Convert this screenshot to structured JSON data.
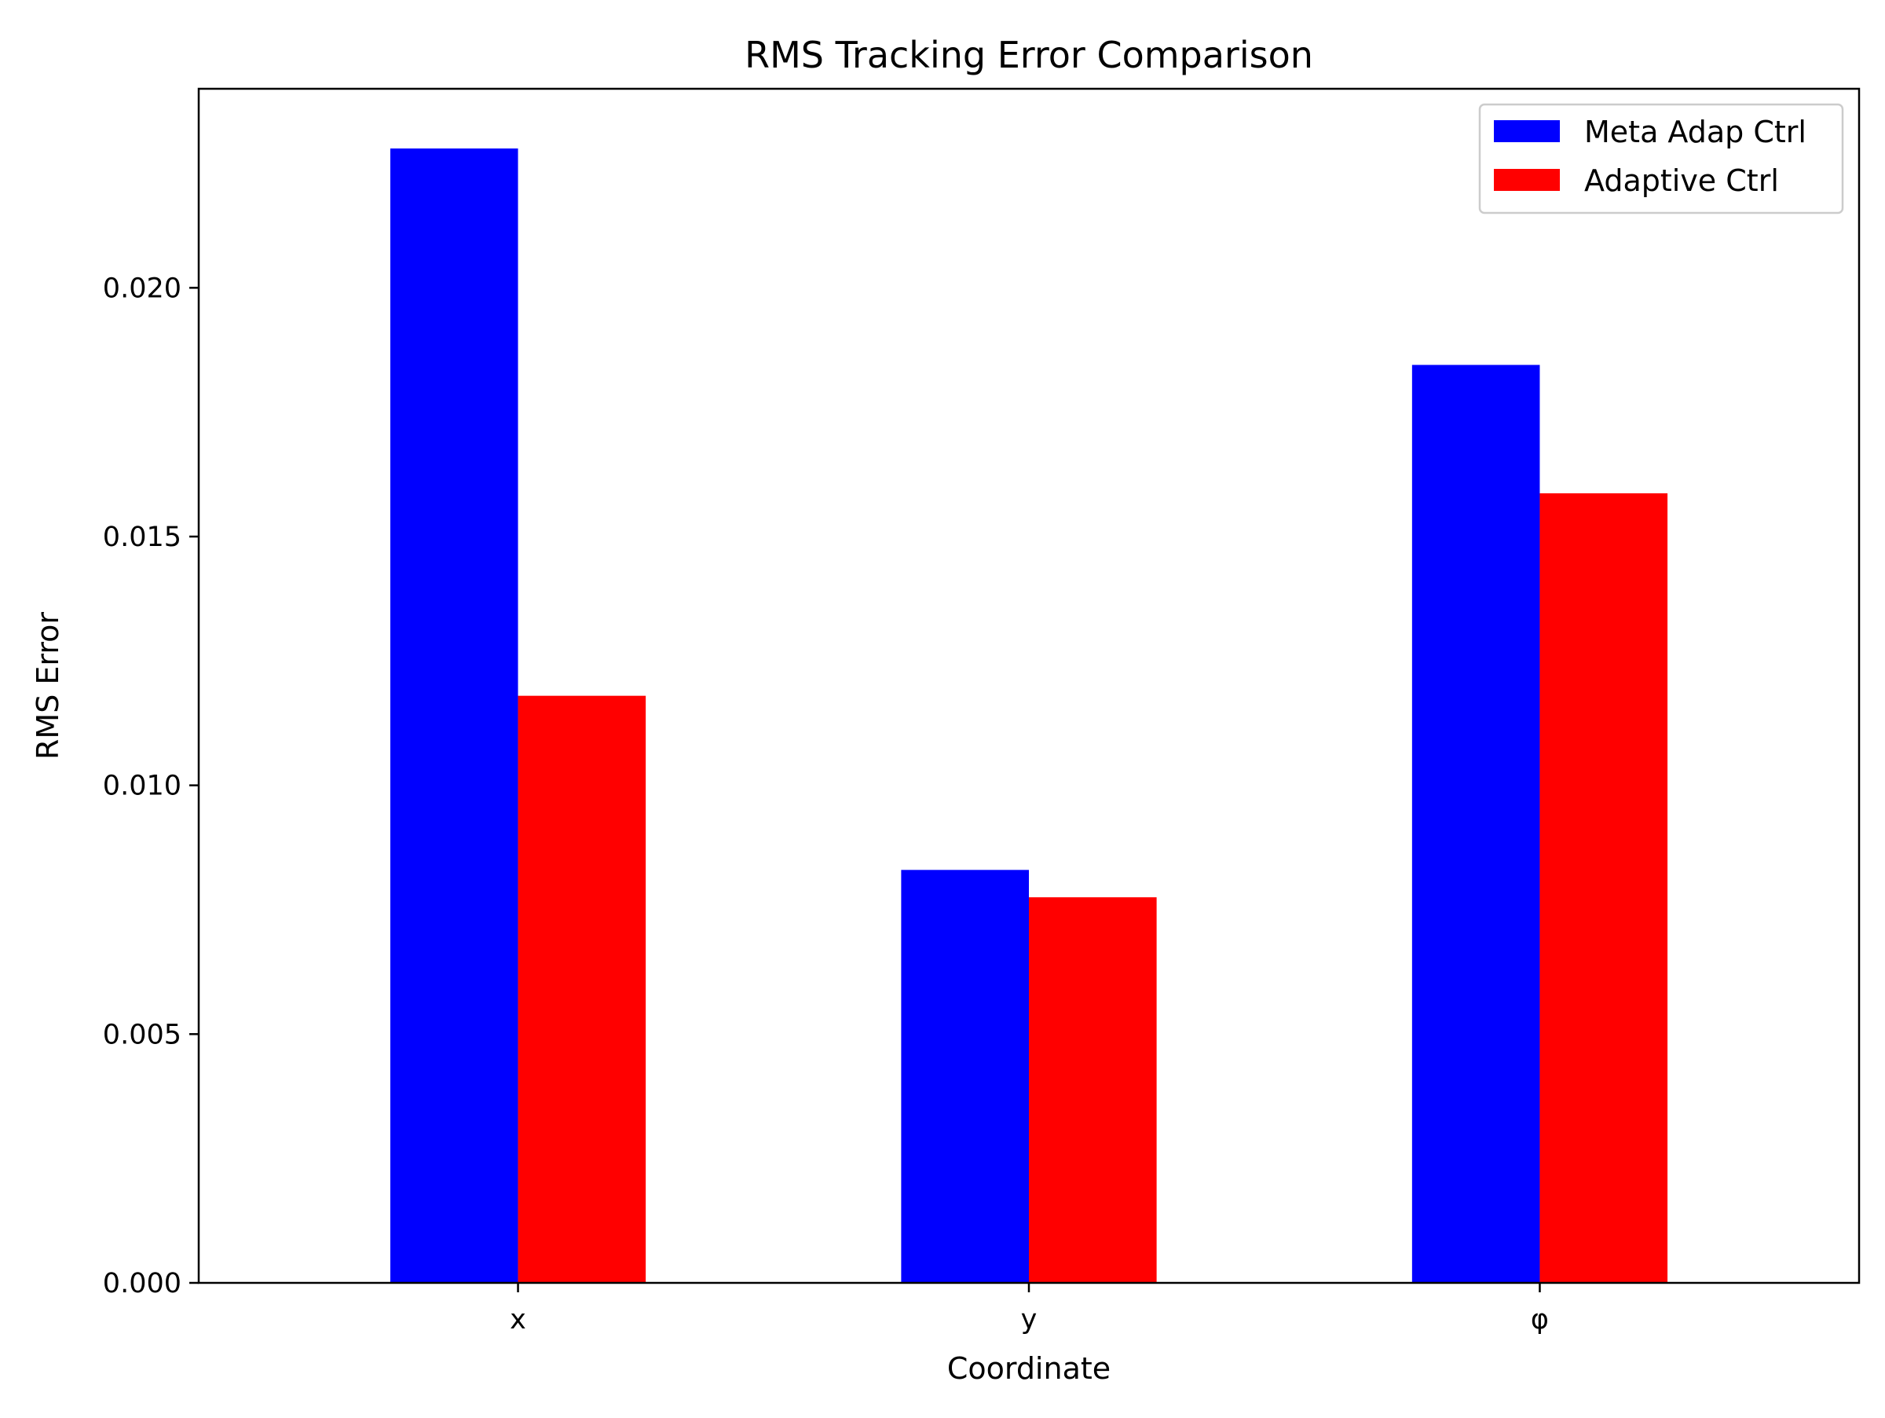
{
  "chart_data": {
    "type": "bar",
    "title": "RMS Tracking Error Comparison",
    "xlabel": "Coordinate",
    "ylabel": "RMS Error",
    "categories": [
      "x",
      "y",
      "φ"
    ],
    "series": [
      {
        "name": "Meta Adap Ctrl",
        "color": "#0000ff",
        "values": [
          0.0228,
          0.0083,
          0.01845
        ]
      },
      {
        "name": "Adaptive Ctrl",
        "color": "#ff0000",
        "values": [
          0.0118,
          0.00775,
          0.01587
        ]
      }
    ],
    "ylim": [
      0,
      0.024
    ],
    "yticks": [
      "0.000",
      "0.005",
      "0.010",
      "0.015",
      "0.020"
    ],
    "ytick_values": [
      0,
      0.005,
      0.01,
      0.015,
      0.02
    ],
    "grid": false,
    "legend_position": "top-right"
  }
}
